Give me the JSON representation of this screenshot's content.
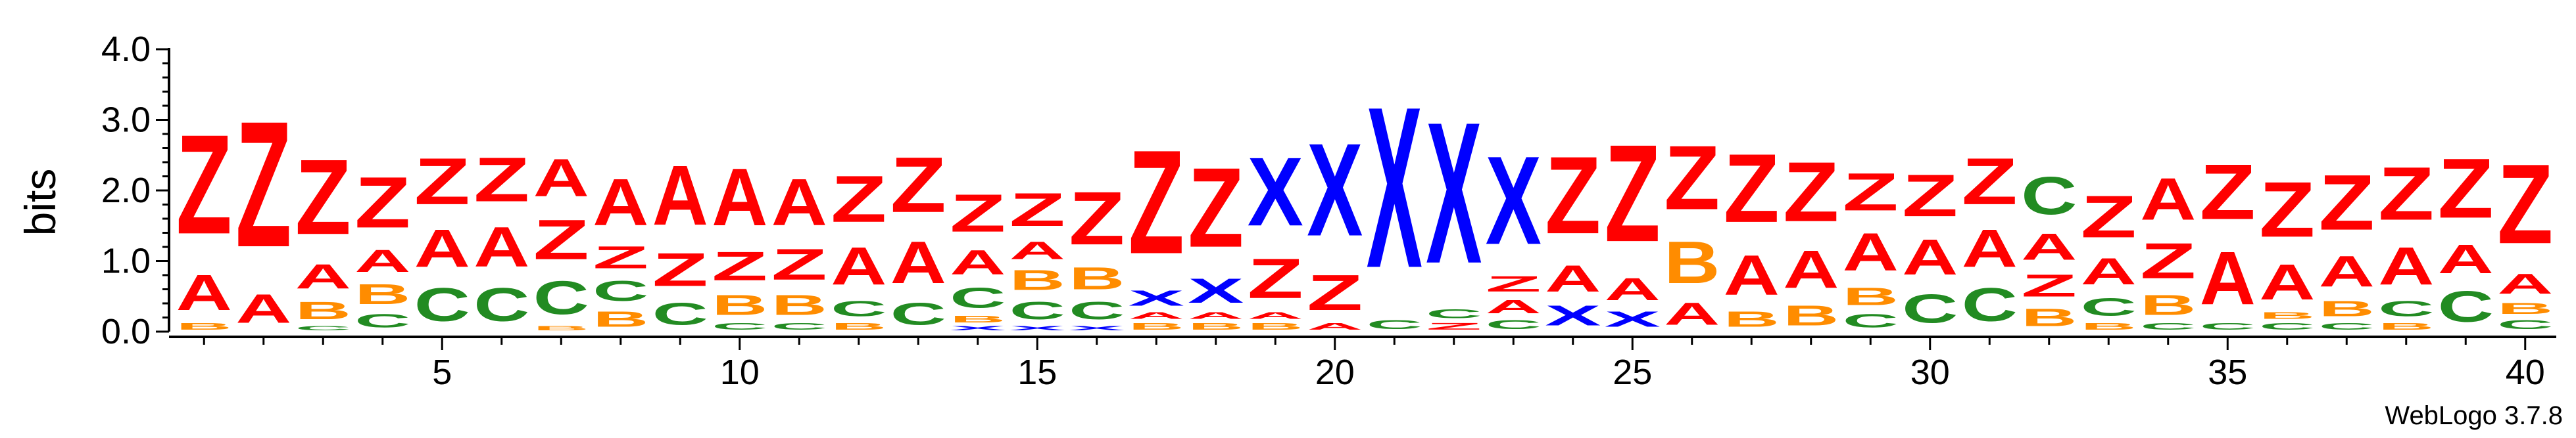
{
  "chart_data": {
    "type": "sequence-logo",
    "title": "",
    "xlabel": "",
    "ylabel": "bits",
    "ylim": [
      0,
      4.0
    ],
    "y_ticks": [
      0.0,
      1.0,
      2.0,
      3.0,
      4.0
    ],
    "y_tick_labels": [
      "0.0",
      "1.0",
      "2.0",
      "3.0",
      "4.0"
    ],
    "x_range": [
      1,
      40
    ],
    "x_ticks": [
      5,
      10,
      15,
      20,
      25,
      30,
      35,
      40
    ],
    "x_tick_labels": [
      "5",
      "10",
      "15",
      "20",
      "25",
      "30",
      "35",
      "40"
    ],
    "credit": "WebLogo 3.7.8",
    "colors": {
      "A": "#ff0000",
      "Z": "#ff0000",
      "B": "#ff8c00",
      "C": "#228b22",
      "X": "#0000ff"
    },
    "positions": [
      {
        "pos": 1,
        "stack": [
          [
            "B",
            0.15
          ],
          [
            "A",
            0.8
          ],
          [
            "Z",
            2.25
          ]
        ]
      },
      {
        "pos": 2,
        "stack": [
          [
            "A",
            0.65
          ],
          [
            "Z",
            2.85
          ]
        ]
      },
      {
        "pos": 3,
        "stack": [
          [
            "C",
            0.1
          ],
          [
            "B",
            0.4
          ],
          [
            "A",
            0.55
          ],
          [
            "Z",
            1.7
          ]
        ]
      },
      {
        "pos": 4,
        "stack": [
          [
            "C",
            0.3
          ],
          [
            "B",
            0.45
          ],
          [
            "A",
            0.5
          ],
          [
            "Z",
            1.15
          ]
        ]
      },
      {
        "pos": 5,
        "stack": [
          [
            "C",
            0.75
          ],
          [
            "A",
            0.85
          ],
          [
            "Z",
            1.05
          ]
        ]
      },
      {
        "pos": 6,
        "stack": [
          [
            "C",
            0.75
          ],
          [
            "A",
            0.9
          ],
          [
            "Z",
            1.0
          ]
        ]
      },
      {
        "pos": 7,
        "stack": [
          [
            "B",
            0.1
          ],
          [
            "C",
            0.75
          ],
          [
            "Z",
            0.9
          ],
          [
            "A",
            0.85
          ]
        ]
      },
      {
        "pos": 8,
        "stack": [
          [
            "B",
            0.35
          ],
          [
            "C",
            0.45
          ],
          [
            "Z",
            0.5
          ],
          [
            "A",
            1.05
          ]
        ]
      },
      {
        "pos": 9,
        "stack": [
          [
            "C",
            0.5
          ],
          [
            "Z",
            0.75
          ],
          [
            "A",
            1.35
          ]
        ]
      },
      {
        "pos": 10,
        "stack": [
          [
            "C",
            0.15
          ],
          [
            "B",
            0.45
          ],
          [
            "Z",
            0.65
          ],
          [
            "A",
            1.3
          ]
        ]
      },
      {
        "pos": 11,
        "stack": [
          [
            "C",
            0.15
          ],
          [
            "B",
            0.45
          ],
          [
            "Z",
            0.7
          ],
          [
            "A",
            1.05
          ]
        ]
      },
      {
        "pos": 12,
        "stack": [
          [
            "B",
            0.15
          ],
          [
            "C",
            0.35
          ],
          [
            "A",
            0.85
          ],
          [
            "Z",
            1.05
          ]
        ]
      },
      {
        "pos": 13,
        "stack": [
          [
            "C",
            0.5
          ],
          [
            "A",
            0.95
          ],
          [
            "Z",
            1.25
          ]
        ]
      },
      {
        "pos": 14,
        "stack": [
          [
            "X",
            0.1
          ],
          [
            "B",
            0.15
          ],
          [
            "C",
            0.45
          ],
          [
            "A",
            0.55
          ],
          [
            "Z",
            0.85
          ]
        ]
      },
      {
        "pos": 15,
        "stack": [
          [
            "X",
            0.1
          ],
          [
            "C",
            0.4
          ],
          [
            "B",
            0.45
          ],
          [
            "A",
            0.4
          ],
          [
            "Z",
            0.75
          ]
        ]
      },
      {
        "pos": 16,
        "stack": [
          [
            "X",
            0.1
          ],
          [
            "C",
            0.4
          ],
          [
            "B",
            0.5
          ],
          [
            "Z",
            1.2
          ]
        ]
      },
      {
        "pos": 17,
        "stack": [
          [
            "B",
            0.15
          ],
          [
            "A",
            0.15
          ],
          [
            "X",
            0.35
          ],
          [
            "Z",
            2.35
          ]
        ]
      },
      {
        "pos": 18,
        "stack": [
          [
            "B",
            0.15
          ],
          [
            "A",
            0.15
          ],
          [
            "X",
            0.55
          ],
          [
            "Z",
            1.8
          ]
        ]
      },
      {
        "pos": 19,
        "stack": [
          [
            "B",
            0.15
          ],
          [
            "A",
            0.15
          ],
          [
            "Z",
            0.9
          ],
          [
            "X",
            1.55
          ]
        ]
      },
      {
        "pos": 20,
        "stack": [
          [
            "A",
            0.15
          ],
          [
            "Z",
            0.8
          ],
          [
            "X",
            2.1
          ]
        ]
      },
      {
        "pos": 21,
        "stack": [
          [
            "C",
            0.2
          ],
          [
            "X",
            3.65
          ]
        ]
      },
      {
        "pos": 22,
        "stack": [
          [
            "Z",
            0.15
          ],
          [
            "C",
            0.2
          ],
          [
            "X",
            3.2
          ]
        ]
      },
      {
        "pos": 23,
        "stack": [
          [
            "C",
            0.2
          ],
          [
            "A",
            0.3
          ],
          [
            "Z",
            0.35
          ],
          [
            "X",
            2.0
          ]
        ]
      },
      {
        "pos": 24,
        "stack": [
          [
            "X",
            0.45
          ],
          [
            "A",
            0.6
          ],
          [
            "Z",
            1.75
          ]
        ]
      },
      {
        "pos": 25,
        "stack": [
          [
            "X",
            0.35
          ],
          [
            "A",
            0.5
          ],
          [
            "Z",
            2.2
          ]
        ]
      },
      {
        "pos": 26,
        "stack": [
          [
            "A",
            0.5
          ],
          [
            "B",
            0.95
          ],
          [
            "Z",
            1.45
          ]
        ]
      },
      {
        "pos": 27,
        "stack": [
          [
            "B",
            0.35
          ],
          [
            "A",
            0.9
          ],
          [
            "Z",
            1.55
          ]
        ]
      },
      {
        "pos": 28,
        "stack": [
          [
            "B",
            0.45
          ],
          [
            "A",
            0.85
          ],
          [
            "Z",
            1.35
          ]
        ]
      },
      {
        "pos": 29,
        "stack": [
          [
            "C",
            0.3
          ],
          [
            "B",
            0.4
          ],
          [
            "A",
            0.85
          ],
          [
            "Z",
            0.85
          ]
        ]
      },
      {
        "pos": 30,
        "stack": [
          [
            "C",
            0.65
          ],
          [
            "A",
            0.8
          ],
          [
            "Z",
            0.95
          ]
        ]
      },
      {
        "pos": 31,
        "stack": [
          [
            "C",
            0.75
          ],
          [
            "A",
            0.85
          ],
          [
            "Z",
            1.05
          ]
        ]
      },
      {
        "pos": 32,
        "stack": [
          [
            "B",
            0.4
          ],
          [
            "Z",
            0.5
          ],
          [
            "A",
            0.6
          ],
          [
            "C",
            0.85
          ]
        ]
      },
      {
        "pos": 33,
        "stack": [
          [
            "B",
            0.15
          ],
          [
            "C",
            0.4
          ],
          [
            "A",
            0.6
          ],
          [
            "Z",
            0.95
          ]
        ]
      },
      {
        "pos": 34,
        "stack": [
          [
            "C",
            0.15
          ],
          [
            "B",
            0.45
          ],
          [
            "Z",
            0.8
          ],
          [
            "A",
            0.95
          ]
        ]
      },
      {
        "pos": 35,
        "stack": [
          [
            "C",
            0.15
          ],
          [
            "A",
            1.2
          ],
          [
            "Z",
            1.25
          ]
        ]
      },
      {
        "pos": 36,
        "stack": [
          [
            "C",
            0.15
          ],
          [
            "B",
            0.15
          ],
          [
            "A",
            0.8
          ],
          [
            "Z",
            1.25
          ]
        ]
      },
      {
        "pos": 37,
        "stack": [
          [
            "C",
            0.15
          ],
          [
            "B",
            0.35
          ],
          [
            "A",
            0.7
          ],
          [
            "Z",
            1.25
          ]
        ]
      },
      {
        "pos": 38,
        "stack": [
          [
            "B",
            0.15
          ],
          [
            "C",
            0.35
          ],
          [
            "A",
            0.85
          ],
          [
            "Z",
            1.2
          ]
        ]
      },
      {
        "pos": 39,
        "stack": [
          [
            "C",
            0.7
          ],
          [
            "A",
            0.65
          ],
          [
            "Z",
            1.35
          ]
        ]
      },
      {
        "pos": 40,
        "stack": [
          [
            "C",
            0.2
          ],
          [
            "B",
            0.25
          ],
          [
            "A",
            0.45
          ],
          [
            "Z",
            1.8
          ]
        ]
      }
    ]
  }
}
